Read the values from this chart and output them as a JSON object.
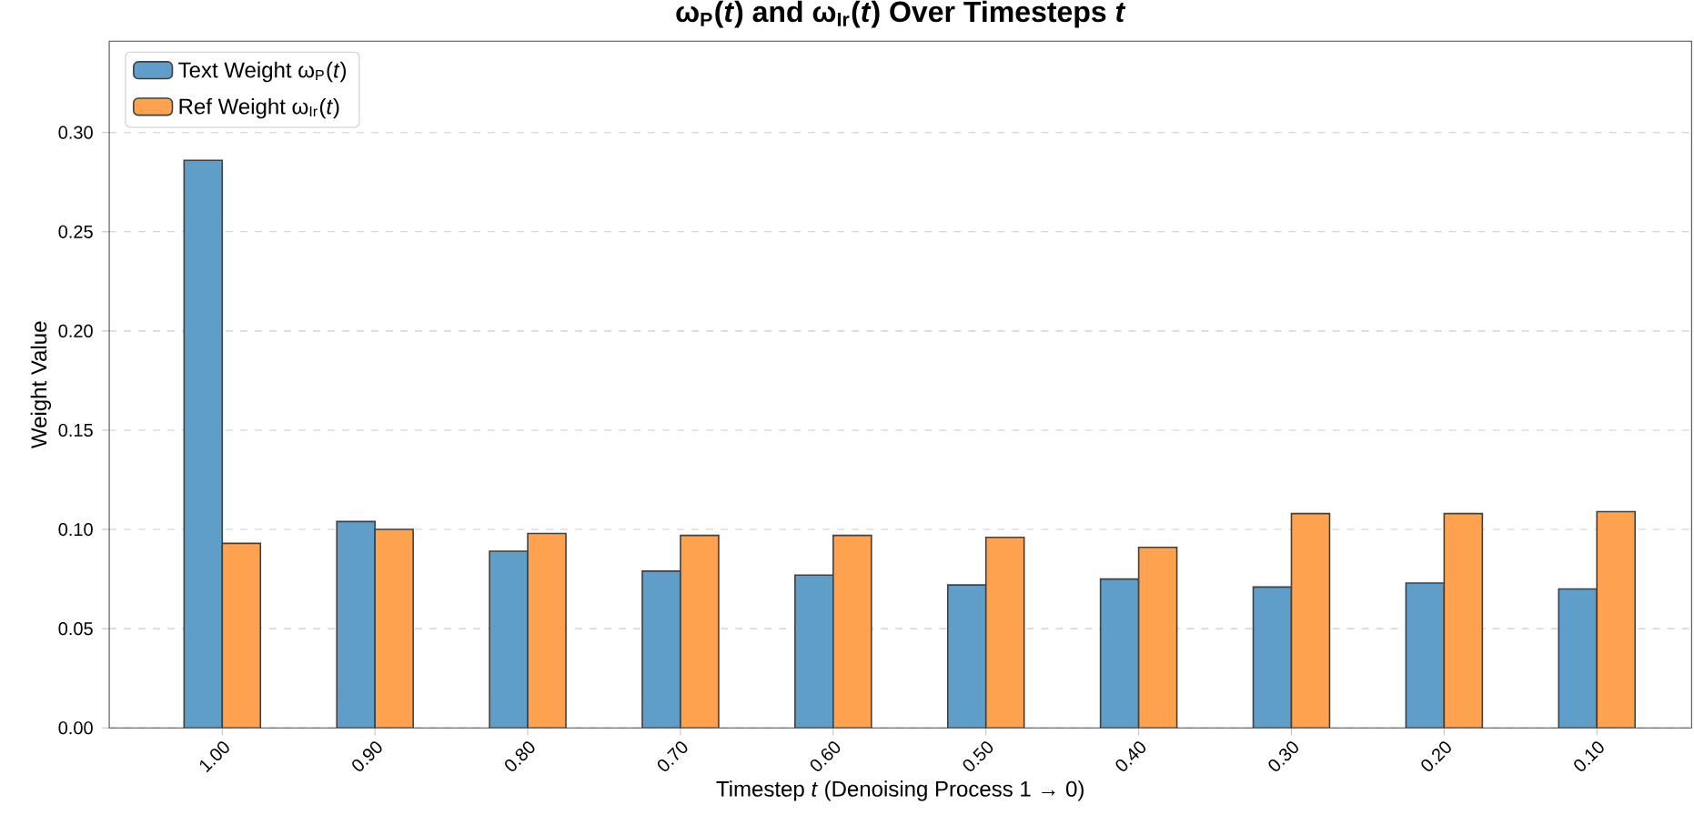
{
  "chart_data": {
    "type": "bar",
    "title": "ω$_{P}$(*t*) and ω$_{Ir}$(*t*) Over Timesteps *t*",
    "xlabel": "Timestep *t* (Denoising Process 1 → 0)",
    "ylabel": "Weight Value",
    "categories": [
      "1.00",
      "0.90",
      "0.80",
      "0.70",
      "0.60",
      "0.50",
      "0.40",
      "0.30",
      "0.20",
      "0.10"
    ],
    "series": [
      {
        "name": "Text Weight ω$_{P}$(*t*)",
        "color": "#5f9ec9",
        "values": [
          0.286,
          0.104,
          0.089,
          0.079,
          0.077,
          0.072,
          0.075,
          0.071,
          0.073,
          0.07
        ]
      },
      {
        "name": "Ref Weight ω$_{Ir}$(*t*)",
        "color": "#ffa24f",
        "values": [
          0.093,
          0.1,
          0.098,
          0.097,
          0.097,
          0.096,
          0.091,
          0.108,
          0.108,
          0.109
        ]
      }
    ],
    "ylim": [
      0,
      0.346
    ],
    "yticks": [
      {
        "value": 0,
        "label": "0.00"
      },
      {
        "value": 0.05,
        "label": "0.05"
      },
      {
        "value": 0.1,
        "label": "0.10"
      },
      {
        "value": 0.15,
        "label": "0.15"
      },
      {
        "value": 0.2,
        "label": "0.20"
      },
      {
        "value": 0.25,
        "label": "0.25"
      },
      {
        "value": 0.3,
        "label": "0.30"
      }
    ],
    "grid": "y",
    "legend": "top left"
  }
}
